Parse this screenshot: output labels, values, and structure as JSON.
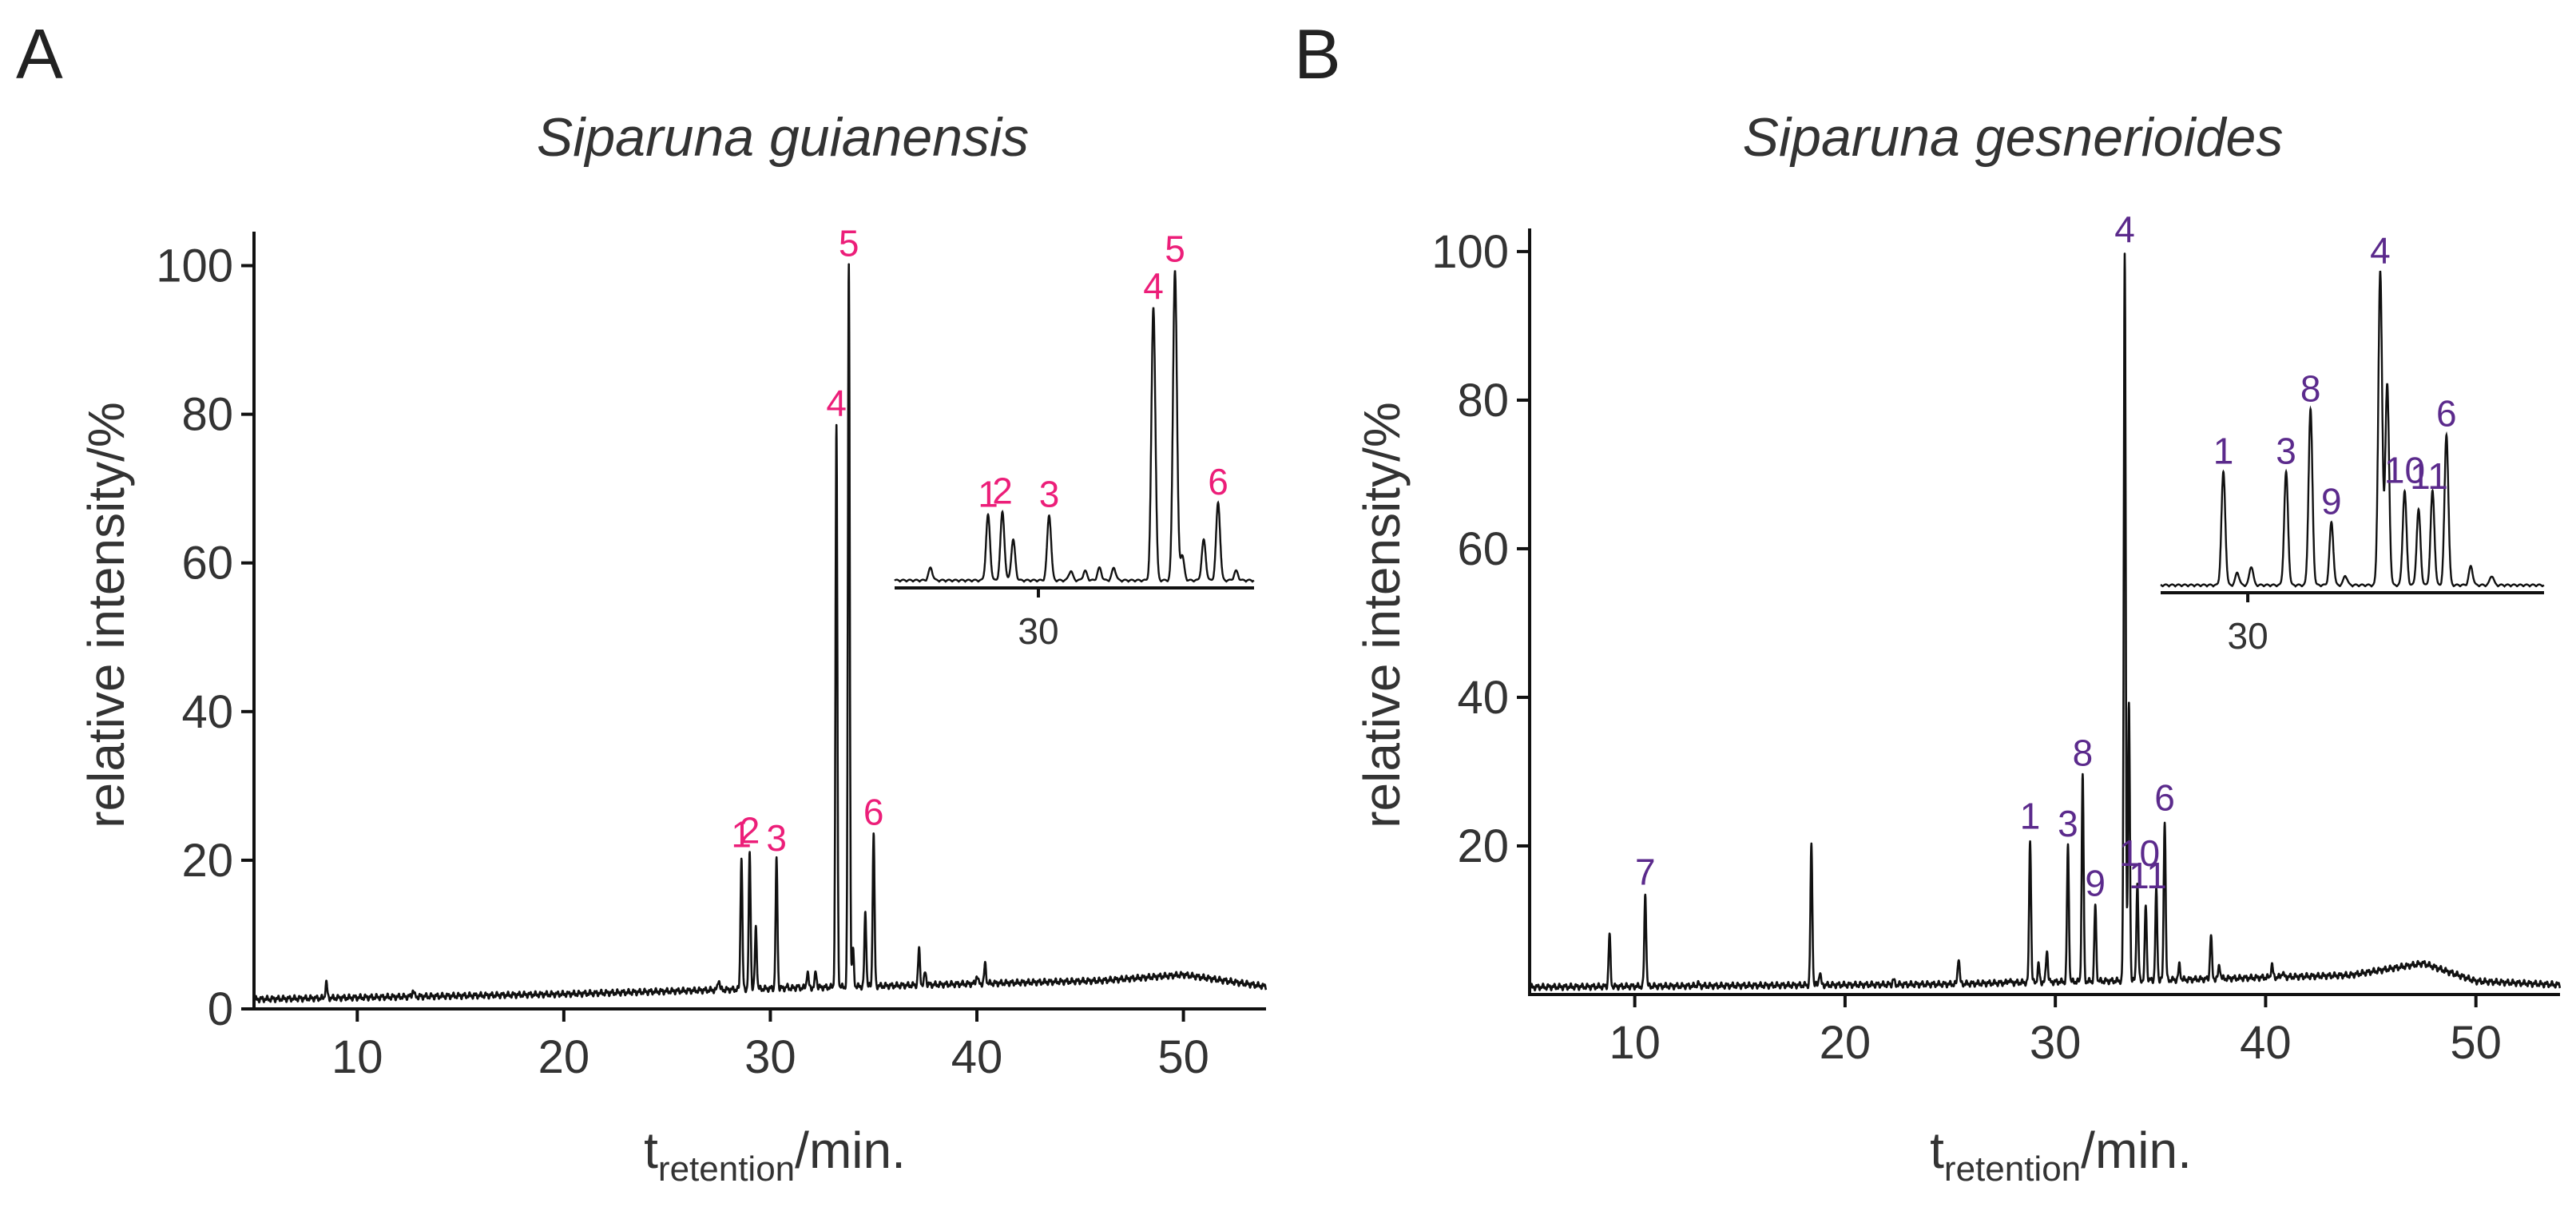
{
  "chart_data": [
    {
      "type": "line",
      "panel": "A",
      "title": "Siparuna guianensis",
      "ylabel": "relative intensity/%",
      "xlabel_main": "t",
      "xlabel_sub": "retention",
      "xlabel_tail": "/min.",
      "xlim": [
        5,
        54
      ],
      "ylim": [
        0,
        105
      ],
      "xticks": [
        10,
        20,
        30,
        40,
        50
      ],
      "yticks": [
        0,
        20,
        40,
        60,
        80,
        100
      ],
      "baseline": [
        [
          5,
          1.3
        ],
        [
          20,
          2.0
        ],
        [
          28,
          2.6
        ],
        [
          40,
          3.4
        ],
        [
          46,
          3.8
        ],
        [
          50,
          4.6
        ],
        [
          54,
          3.0
        ]
      ],
      "peaks": [
        [
          8.5,
          3.5
        ],
        [
          12.7,
          2.5
        ],
        [
          27.5,
          4
        ],
        [
          28.6,
          20.5
        ],
        [
          29.0,
          21
        ],
        [
          29.3,
          11
        ],
        [
          30.3,
          20
        ],
        [
          30.8,
          3
        ],
        [
          31.3,
          3
        ],
        [
          31.8,
          5
        ],
        [
          32.2,
          5
        ],
        [
          33.2,
          78.5
        ],
        [
          33.8,
          100
        ],
        [
          34.0,
          8
        ],
        [
          34.6,
          13
        ],
        [
          35.0,
          23.5
        ],
        [
          37.2,
          8
        ],
        [
          37.5,
          5
        ],
        [
          40.0,
          4.5
        ],
        [
          40.4,
          6
        ],
        [
          42.0,
          2
        ],
        [
          50.5,
          3
        ],
        [
          51.0,
          2.5
        ]
      ],
      "labels": [
        {
          "text": "1",
          "x": 28.6,
          "y": 20.5
        },
        {
          "text": "2",
          "x": 29.0,
          "y": 21
        },
        {
          "text": "3",
          "x": 30.3,
          "y": 20
        },
        {
          "text": "4",
          "x": 33.2,
          "y": 78.5
        },
        {
          "text": "5",
          "x": 33.8,
          "y": 100
        },
        {
          "text": "6",
          "x": 35.0,
          "y": 23.5
        }
      ],
      "inset": {
        "xlim": [
          26,
          36
        ],
        "ylim": [
          0,
          105
        ],
        "tick": 30,
        "tick_label": "30",
        "peaks": [
          [
            27.0,
            4
          ],
          [
            28.6,
            21
          ],
          [
            29.0,
            22
          ],
          [
            29.3,
            13
          ],
          [
            30.3,
            21
          ],
          [
            30.9,
            3
          ],
          [
            31.3,
            3
          ],
          [
            31.7,
            4
          ],
          [
            32.1,
            4
          ],
          [
            33.2,
            88
          ],
          [
            33.8,
            100
          ],
          [
            34.0,
            8
          ],
          [
            34.6,
            13
          ],
          [
            35.0,
            25
          ],
          [
            35.5,
            3
          ]
        ],
        "labels": [
          {
            "text": "1",
            "x": 28.6,
            "y": 21
          },
          {
            "text": "2",
            "x": 29.0,
            "y": 22
          },
          {
            "text": "3",
            "x": 30.3,
            "y": 21
          },
          {
            "text": "4",
            "x": 33.2,
            "y": 88
          },
          {
            "text": "5",
            "x": 33.8,
            "y": 100
          },
          {
            "text": "6",
            "x": 35.0,
            "y": 25
          }
        ]
      }
    },
    {
      "type": "line",
      "panel": "B",
      "title": "Siparuna gesnerioides",
      "ylabel": "relative intensity/%",
      "xlabel_main": "t",
      "xlabel_sub": "retention",
      "xlabel_tail": "/min.",
      "xlim": [
        5,
        54
      ],
      "ylim": [
        0,
        103
      ],
      "xticks": [
        10,
        20,
        30,
        40,
        50
      ],
      "yticks": [
        20,
        40,
        60,
        80,
        100
      ],
      "baseline": [
        [
          5,
          1.0
        ],
        [
          25,
          1.4
        ],
        [
          28,
          1.6
        ],
        [
          36,
          2.0
        ],
        [
          44,
          2.6
        ],
        [
          47.5,
          4.2
        ],
        [
          50,
          1.8
        ],
        [
          54,
          1.3
        ]
      ],
      "peaks": [
        [
          8.8,
          8
        ],
        [
          10.5,
          13.5
        ],
        [
          13.0,
          1.5
        ],
        [
          18.4,
          20
        ],
        [
          18.8,
          3
        ],
        [
          22.3,
          2
        ],
        [
          25.4,
          5
        ],
        [
          27.8,
          2
        ],
        [
          28.8,
          21
        ],
        [
          29.2,
          4
        ],
        [
          29.6,
          6
        ],
        [
          30.6,
          20
        ],
        [
          31.3,
          29.5
        ],
        [
          31.9,
          12
        ],
        [
          33.3,
          100
        ],
        [
          33.5,
          39
        ],
        [
          33.9,
          15
        ],
        [
          34.3,
          12
        ],
        [
          34.8,
          14
        ],
        [
          35.2,
          23.5
        ],
        [
          35.9,
          4
        ],
        [
          37.4,
          8
        ],
        [
          37.8,
          4
        ],
        [
          40.3,
          4
        ],
        [
          40.8,
          3
        ],
        [
          51.5,
          1.5
        ]
      ],
      "labels": [
        {
          "text": "1",
          "x": 28.8,
          "y": 21
        },
        {
          "text": "3",
          "x": 30.6,
          "y": 20
        },
        {
          "text": "8",
          "x": 31.3,
          "y": 29.5
        },
        {
          "text": "9",
          "x": 31.9,
          "y": 12
        },
        {
          "text": "4",
          "x": 33.3,
          "y": 100
        },
        {
          "text": "10",
          "x": 34.0,
          "y": 16
        },
        {
          "text": "11",
          "x": 34.4,
          "y": 13
        },
        {
          "text": "6",
          "x": 35.2,
          "y": 23.5
        },
        {
          "text": "7",
          "x": 10.5,
          "y": 13.5
        }
      ],
      "inset": {
        "xlim": [
          27,
          38
        ],
        "ylim": [
          0,
          105
        ],
        "tick": 29.5,
        "tick_label": "30",
        "peaks": [
          [
            28.8,
            36
          ],
          [
            29.2,
            4
          ],
          [
            29.6,
            6
          ],
          [
            30.6,
            36
          ],
          [
            31.3,
            56
          ],
          [
            31.9,
            20
          ],
          [
            32.3,
            3
          ],
          [
            33.3,
            100
          ],
          [
            33.5,
            64
          ],
          [
            34.0,
            30
          ],
          [
            34.4,
            24
          ],
          [
            34.8,
            30
          ],
          [
            35.2,
            48
          ],
          [
            35.9,
            6
          ],
          [
            36.5,
            3
          ]
        ],
        "labels": [
          {
            "text": "1",
            "x": 28.8,
            "y": 36
          },
          {
            "text": "3",
            "x": 30.6,
            "y": 36
          },
          {
            "text": "8",
            "x": 31.3,
            "y": 56
          },
          {
            "text": "9",
            "x": 31.9,
            "y": 20
          },
          {
            "text": "4",
            "x": 33.3,
            "y": 100
          },
          {
            "text": "10",
            "x": 34.0,
            "y": 30
          },
          {
            "text": "11",
            "x": 34.7,
            "y": 28
          },
          {
            "text": "6",
            "x": 35.2,
            "y": 48
          }
        ]
      }
    }
  ]
}
